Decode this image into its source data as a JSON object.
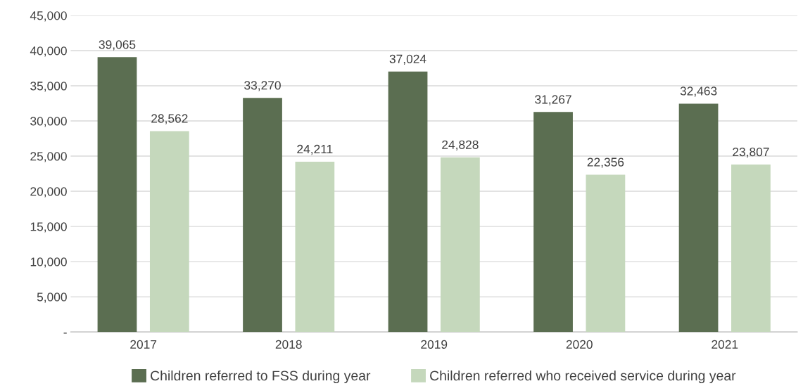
{
  "chart_data": {
    "type": "bar",
    "categories": [
      "2017",
      "2018",
      "2019",
      "2020",
      "2021"
    ],
    "series": [
      {
        "name": "Children referred to FSS during year",
        "color": "#5b6e51",
        "values": [
          39065,
          33270,
          37024,
          31267,
          32463
        ],
        "value_labels": [
          "39,065",
          "33,270",
          "37,024",
          "31,267",
          "32,463"
        ]
      },
      {
        "name": "Children referred who received service during year",
        "color": "#c5d8bc",
        "values": [
          28562,
          24211,
          24828,
          22356,
          23807
        ],
        "value_labels": [
          "28,562",
          "24,211",
          "24,828",
          "22,356",
          "23,807"
        ]
      }
    ],
    "ylim": [
      0,
      45000
    ],
    "yticks": [
      {
        "value": 0,
        "label": "-"
      },
      {
        "value": 5000,
        "label": "5,000"
      },
      {
        "value": 10000,
        "label": "10,000"
      },
      {
        "value": 15000,
        "label": "15,000"
      },
      {
        "value": 20000,
        "label": "20,000"
      },
      {
        "value": 25000,
        "label": "25,000"
      },
      {
        "value": 30000,
        "label": "30,000"
      },
      {
        "value": 35000,
        "label": "35,000"
      },
      {
        "value": 40000,
        "label": "40,000"
      },
      {
        "value": 45000,
        "label": "45,000"
      }
    ],
    "grid": "y",
    "legend": "bottom"
  }
}
